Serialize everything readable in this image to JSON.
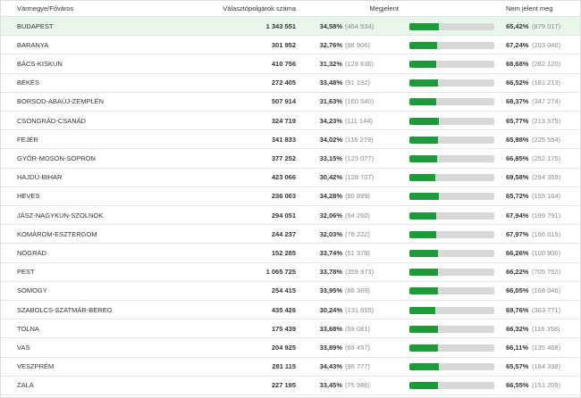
{
  "table": {
    "headers": [
      "Vármegye/Főváros",
      "Választópolgárok száma",
      "Megjelent",
      "Nem jelent meg"
    ],
    "rows": [
      {
        "county": "BUDAPEST",
        "voters": "1 343 551",
        "present": 34.58,
        "present_label": "34,58%",
        "present_count": "(464 534)",
        "absent_label": "65,42%",
        "absent_count": "(879 017)"
      },
      {
        "county": "BARANYA",
        "voters": "301 952",
        "present": 32.76,
        "present_label": "32,76%",
        "present_count": "(98 906)",
        "absent_label": "67,24%",
        "absent_count": "(203 046)"
      },
      {
        "county": "BÁCS-KISKUN",
        "voters": "410 756",
        "present": 31.32,
        "present_label": "31,32%",
        "present_count": "(128 636)",
        "absent_label": "68,68%",
        "absent_count": "(282 120)"
      },
      {
        "county": "BÉKÉS",
        "voters": "272 405",
        "present": 33.48,
        "present_label": "33,48%",
        "present_count": "(91 192)",
        "absent_label": "66,52%",
        "absent_count": "(181 213)"
      },
      {
        "county": "BORSOD-ABAÚJ-ZEMPLÉN",
        "voters": "507 914",
        "present": 31.63,
        "present_label": "31,63%",
        "present_count": "(160 640)",
        "absent_label": "68,37%",
        "absent_count": "(347 274)"
      },
      {
        "county": "CSONGRÁD-CSANÁD",
        "voters": "324 719",
        "present": 34.23,
        "present_label": "34,23%",
        "present_count": "(111 144)",
        "absent_label": "65,77%",
        "absent_count": "(213 575)"
      },
      {
        "county": "FEJÉR",
        "voters": "341 833",
        "present": 34.02,
        "present_label": "34,02%",
        "present_count": "(116 279)",
        "absent_label": "65,98%",
        "absent_count": "(225 554)"
      },
      {
        "county": "GYŐR-MOSON-SOPRON",
        "voters": "377 252",
        "present": 33.15,
        "present_label": "33,15%",
        "present_count": "(125 077)",
        "absent_label": "66,85%",
        "absent_count": "(252 175)"
      },
      {
        "county": "HAJDÚ-BIHAR",
        "voters": "423 066",
        "present": 30.42,
        "present_label": "30,42%",
        "present_count": "(128 707)",
        "absent_label": "69,58%",
        "absent_count": "(294 359)"
      },
      {
        "county": "HEVES",
        "voters": "236 003",
        "present": 34.28,
        "present_label": "34,28%",
        "present_count": "(80 899)",
        "absent_label": "65,72%",
        "absent_count": "(155 104)"
      },
      {
        "county": "JÁSZ-NAGYKUN-SZOLNOK",
        "voters": "294 051",
        "present": 32.06,
        "present_label": "32,06%",
        "present_count": "(94 260)",
        "absent_label": "67,94%",
        "absent_count": "(199 791)"
      },
      {
        "county": "KOMÁROM-ESZTERGOM",
        "voters": "244 237",
        "present": 32.03,
        "present_label": "32,03%",
        "present_count": "(78 222)",
        "absent_label": "67,97%",
        "absent_count": "(166 015)"
      },
      {
        "county": "NÓGRÁD",
        "voters": "152 285",
        "present": 33.74,
        "present_label": "33,74%",
        "present_count": "(51 379)",
        "absent_label": "66,26%",
        "absent_count": "(100 906)"
      },
      {
        "county": "PEST",
        "voters": "1 065 725",
        "present": 33.78,
        "present_label": "33,78%",
        "present_count": "(359 973)",
        "absent_label": "66,22%",
        "absent_count": "(705 752)"
      },
      {
        "county": "SOMOGY",
        "voters": "254 415",
        "present": 33.95,
        "present_label": "33,95%",
        "present_count": "(86 369)",
        "absent_label": "66,05%",
        "absent_count": "(168 046)"
      },
      {
        "county": "SZABOLCS-SZATMÁR-BEREG",
        "voters": "435 426",
        "present": 30.24,
        "present_label": "30,24%",
        "present_count": "(131 655)",
        "absent_label": "69,76%",
        "absent_count": "(303 771)"
      },
      {
        "county": "TOLNA",
        "voters": "175 439",
        "present": 33.68,
        "present_label": "33,68%",
        "present_count": "(59 081)",
        "absent_label": "66,32%",
        "absent_count": "(116 358)"
      },
      {
        "county": "VAS",
        "voters": "204 925",
        "present": 33.89,
        "present_label": "33,89%",
        "present_count": "(69 457)",
        "absent_label": "66,11%",
        "absent_count": "(135 468)"
      },
      {
        "county": "VESZPRÉM",
        "voters": "281 115",
        "present": 34.43,
        "present_label": "34,43%",
        "present_count": "(96 777)",
        "absent_label": "65,57%",
        "absent_count": "(184 338)"
      },
      {
        "county": "ZALA",
        "voters": "227 195",
        "present": 33.45,
        "present_label": "33,45%",
        "present_count": "(75 986)",
        "absent_label": "66,55%",
        "absent_count": "(151 209)"
      }
    ]
  }
}
